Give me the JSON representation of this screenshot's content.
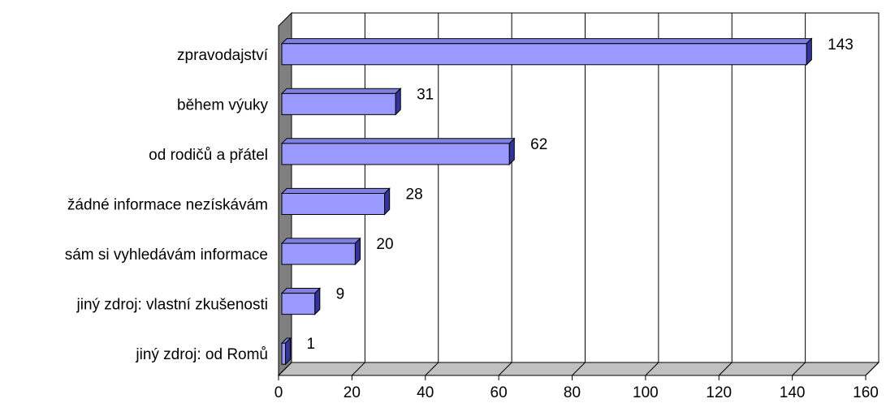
{
  "chart_data": {
    "type": "bar",
    "orientation": "horizontal",
    "style": "3d",
    "categories": [
      "zpravodajství",
      "během výuky",
      "od rodičů a přátel",
      "žádné informace nezískávám",
      "sám si vyhledávám informace",
      "jiný zdroj: vlastní zkušenosti",
      "jiný zdroj: od Romů"
    ],
    "values": [
      143,
      31,
      62,
      28,
      20,
      9,
      1
    ],
    "data_labels": [
      "143",
      "31",
      "62",
      "28",
      "20",
      "9",
      "1"
    ],
    "xlim": [
      0,
      160
    ],
    "x_ticks": [
      0,
      20,
      40,
      60,
      80,
      100,
      120,
      140,
      160
    ],
    "x_tick_labels": [
      "0",
      "20",
      "40",
      "60",
      "80",
      "100",
      "120",
      "140",
      "160"
    ],
    "grid": true,
    "legend": "none",
    "colors": {
      "bar_front": "#9999FF",
      "bar_top": "#8080E0",
      "bar_side": "#333399",
      "left_wall": "#808080",
      "floor": "#C0C0C0",
      "gridline": "#000000"
    }
  }
}
